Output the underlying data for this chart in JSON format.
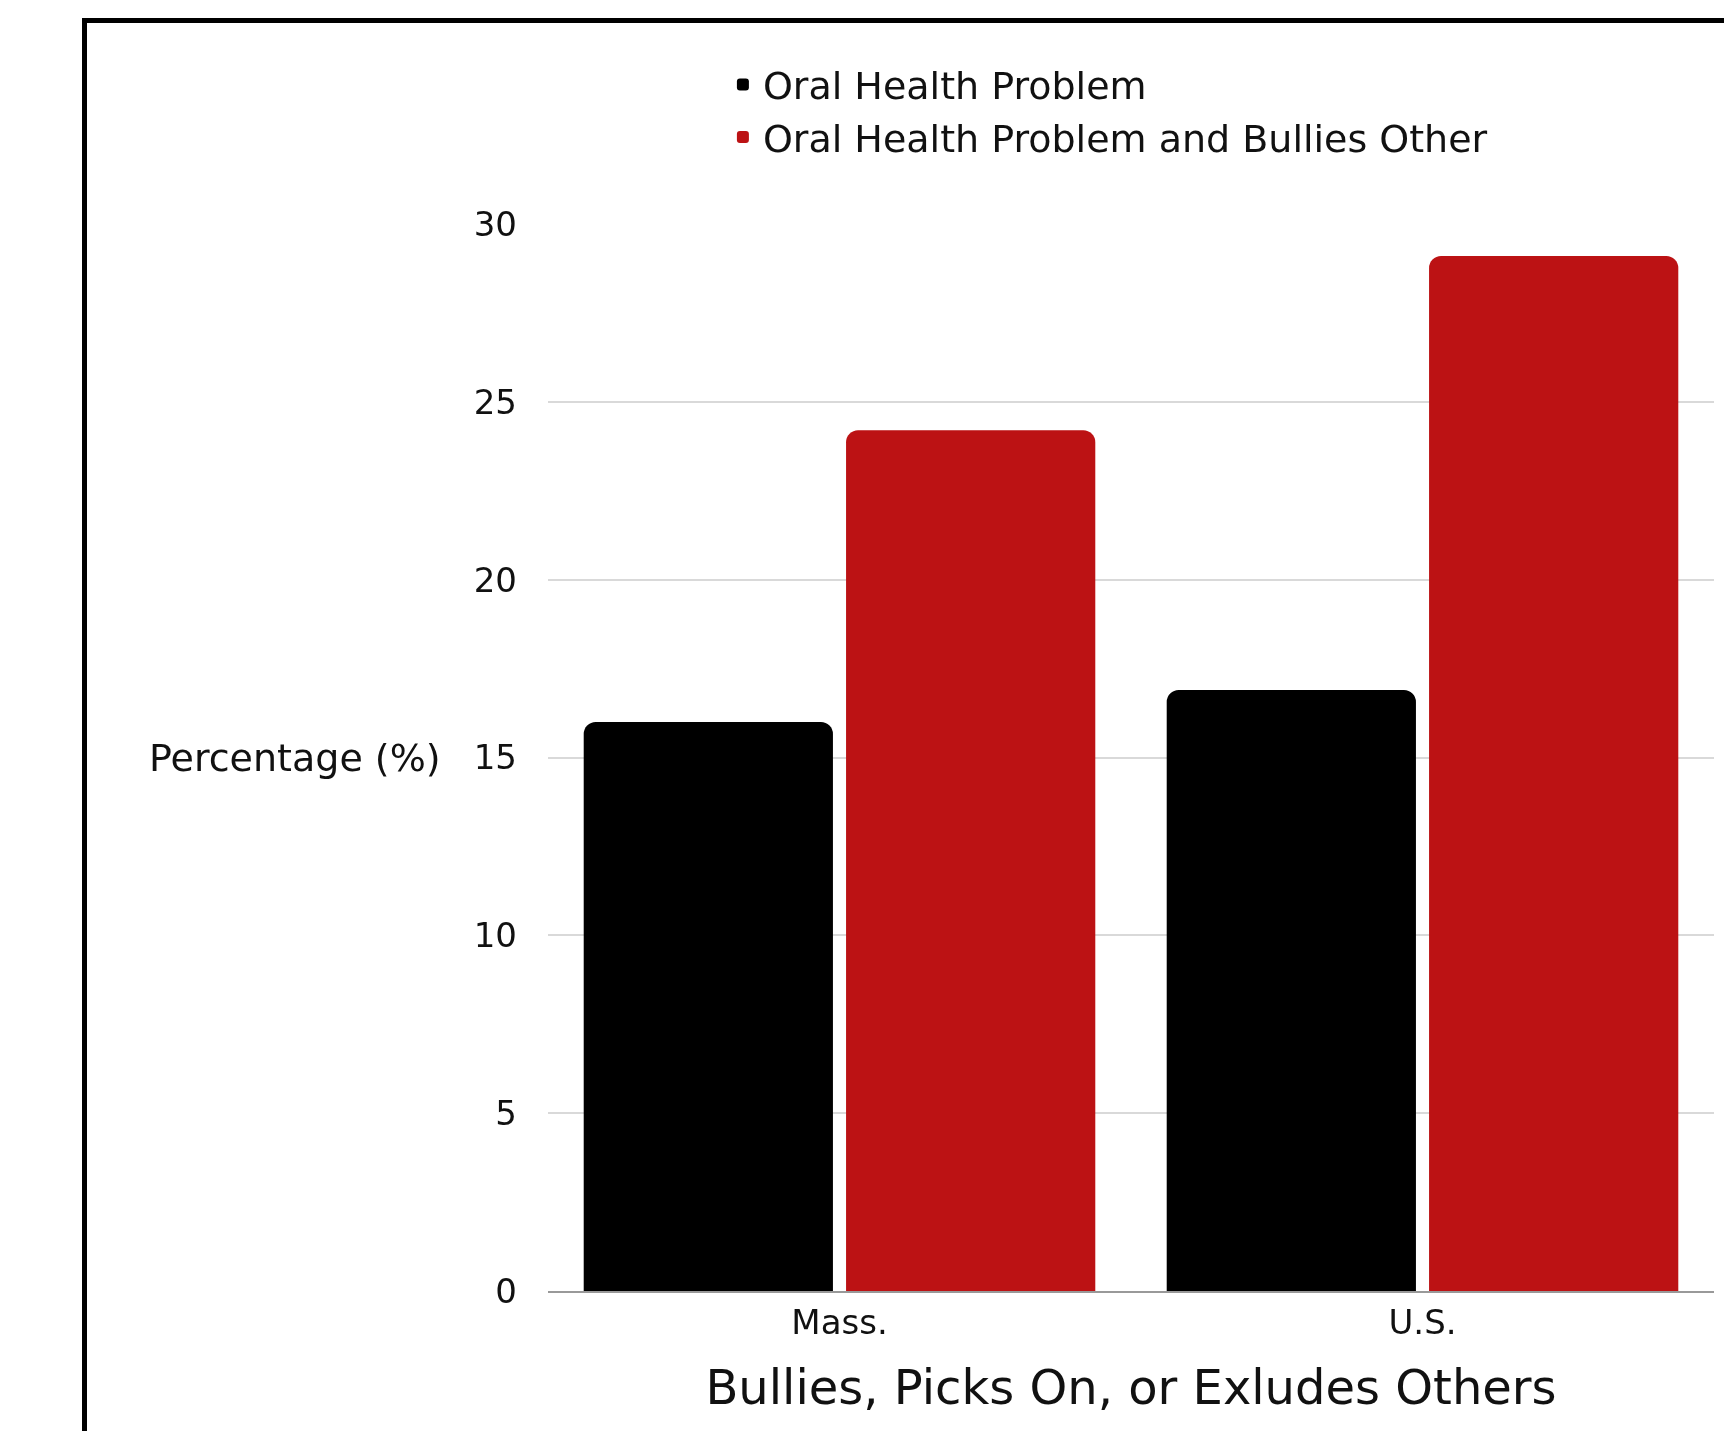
{
  "chart_data": {
    "type": "bar",
    "categories": [
      "Mass.",
      "U.S."
    ],
    "series": [
      {
        "name": "Oral Health Problem",
        "color": "#000000",
        "values": [
          16.0,
          16.9
        ]
      },
      {
        "name": "Oral Health Problem and Bullies Other",
        "color": "#bc1214",
        "values": [
          24.2,
          29.1
        ]
      }
    ],
    "xlabel": "Bullies, Picks On, or Exludes Others",
    "ylabel": "Percentage (%)",
    "ylim": [
      0,
      30
    ],
    "yticks": [
      0,
      5,
      10,
      15,
      20,
      25,
      30
    ],
    "grid": "y",
    "legend": "top"
  }
}
